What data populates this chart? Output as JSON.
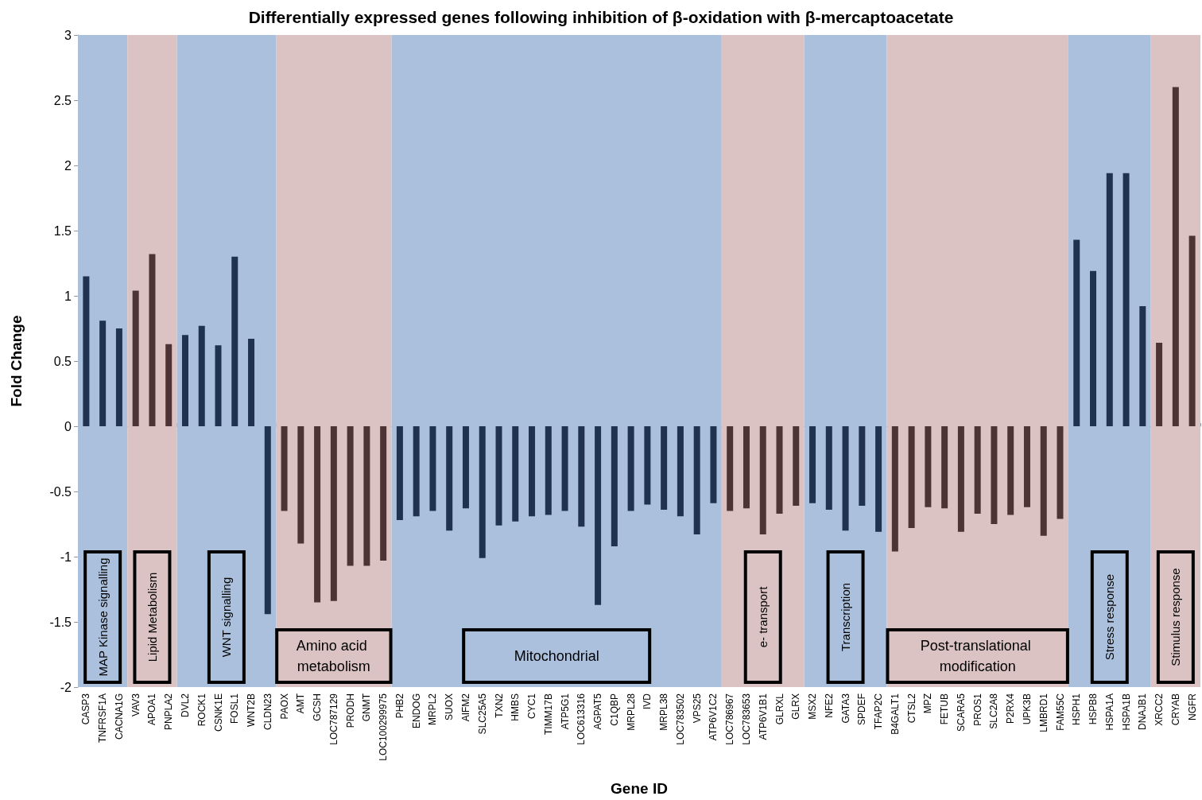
{
  "chart_data": {
    "type": "bar",
    "title": "Differentially expressed genes following inhibition of β-oxidation with β-mercaptoacetate",
    "xlabel": "Gene ID",
    "ylabel": "Fold Change",
    "categories": [
      "CASP3",
      "TNFRSF1A",
      "CACNA1G",
      "VAV3",
      "APOA1",
      "PNPLA2",
      "DVL2",
      "ROCK1",
      "CSNK1E",
      "FOSL1",
      "WNT2B",
      "CLDN23",
      "PAOX",
      "AMT",
      "GCSH",
      "LOC787129",
      "PRODH",
      "GNMT",
      "LOC100299975",
      "PHB2",
      "ENDOG",
      "MRPL2",
      "SUOX",
      "AIFM2",
      "SLC25A5",
      "TXN2",
      "HMBS",
      "CYC1",
      "TIMM17B",
      "ATP5G1",
      "LOC613316",
      "AGPAT5",
      "C1QBP",
      "MRPL28",
      "IVD",
      "MRPL38",
      "LOC783502",
      "VPS25",
      "ATP6V1C2",
      "LOC786967",
      "LOC783653",
      "ATP6V1B1",
      "GLRXL",
      "GLRX",
      "MSX2",
      "NFE2",
      "GATA3",
      "SPDEF",
      "TFAP2C",
      "B4GALT1",
      "CTSL2",
      "MPZ",
      "FETUB",
      "SCARA5",
      "PROS1",
      "SLC2A8",
      "P2RX4",
      "UPK3B",
      "LMBRD1",
      "FAM55C",
      "HSPH1",
      "HSPB8",
      "HSPA1A",
      "HSPA1B",
      "DNAJB1",
      "XRCC2",
      "CRYAB",
      "NGFR"
    ],
    "values": [
      1.15,
      0.81,
      0.75,
      1.04,
      1.32,
      0.63,
      0.7,
      0.77,
      0.62,
      1.3,
      0.67,
      -1.44,
      -0.65,
      -0.9,
      -1.35,
      -1.34,
      -1.07,
      -1.07,
      -1.03,
      -0.72,
      -0.69,
      -0.65,
      -0.8,
      -0.63,
      -1.01,
      -0.76,
      -0.73,
      -0.69,
      -0.68,
      -0.65,
      -0.77,
      -1.37,
      -0.92,
      -0.65,
      -0.6,
      -0.64,
      -0.69,
      -0.83,
      -0.59,
      -0.65,
      -0.63,
      -0.83,
      -0.67,
      -0.61,
      -0.59,
      -0.64,
      -0.8,
      -0.61,
      -0.81,
      -0.96,
      -0.78,
      -0.62,
      -0.63,
      -0.81,
      -0.67,
      -0.75,
      -0.68,
      -0.62,
      -0.84,
      -0.71,
      1.43,
      1.19,
      1.94,
      1.94,
      0.92,
      0.64,
      2.6,
      1.46
    ],
    "colors": [
      "#1f3250",
      "#1f3250",
      "#1f3250",
      "#4d3434",
      "#4d3434",
      "#4d3434",
      "#1f3250",
      "#1f3250",
      "#1f3250",
      "#1f3250",
      "#1f3250",
      "#1f3250",
      "#4d3434",
      "#4d3434",
      "#4d3434",
      "#4d3434",
      "#4d3434",
      "#4d3434",
      "#4d3434",
      "#1f3250",
      "#1f3250",
      "#1f3250",
      "#1f3250",
      "#1f3250",
      "#1f3250",
      "#1f3250",
      "#1f3250",
      "#1f3250",
      "#1f3250",
      "#1f3250",
      "#1f3250",
      "#1f3250",
      "#1f3250",
      "#1f3250",
      "#1f3250",
      "#1f3250",
      "#1f3250",
      "#1f3250",
      "#1f3250",
      "#4d3434",
      "#4d3434",
      "#4d3434",
      "#4d3434",
      "#4d3434",
      "#1f3250",
      "#1f3250",
      "#1f3250",
      "#1f3250",
      "#1f3250",
      "#4d3434",
      "#4d3434",
      "#4d3434",
      "#4d3434",
      "#4d3434",
      "#4d3434",
      "#4d3434",
      "#4d3434",
      "#4d3434",
      "#4d3434",
      "#4d3434",
      "#1f3250",
      "#1f3250",
      "#1f3250",
      "#1f3250",
      "#1f3250",
      "#4d3434",
      "#4d3434",
      "#4d3434"
    ],
    "ylim": [
      -2,
      3
    ],
    "yticks": [
      -2,
      -1.5,
      -1,
      -0.5,
      0,
      0.5,
      1,
      1.5,
      2,
      2.5,
      3
    ],
    "bands": [
      {
        "axis": "x",
        "from": "CASP3",
        "to": "CACNA1G",
        "label": "MAP Kinase signalling",
        "color": "#abc0dc"
      },
      {
        "axis": "x",
        "from": "VAV3",
        "to": "PNPLA2",
        "label": "Lipid Metabolism",
        "color": "#dcc3c3"
      },
      {
        "axis": "x",
        "from": "DVL2",
        "to": "CLDN23",
        "label": "WNT signalling",
        "color": "#abc0dc"
      },
      {
        "axis": "x",
        "from": "PAOX",
        "to": "LOC100299975",
        "label": "Amino acid metabolism",
        "color": "#dcc3c3"
      },
      {
        "axis": "x",
        "from": "PHB2",
        "to": "ATP6V1C2",
        "label": "Mitochondrial",
        "color": "#abc0dc"
      },
      {
        "axis": "x",
        "from": "LOC786967",
        "to": "GLRX",
        "label": "e- transport",
        "color": "#dcc3c3"
      },
      {
        "axis": "x",
        "from": "MSX2",
        "to": "TFAP2C",
        "label": "Transcription",
        "color": "#abc0dc"
      },
      {
        "axis": "x",
        "from": "B4GALT1",
        "to": "FAM55C",
        "label": "Post-translational modification",
        "color": "#dcc3c3"
      },
      {
        "axis": "x",
        "from": "HSPH1",
        "to": "DNAJB1",
        "label": "Stress response",
        "color": "#abc0dc"
      },
      {
        "axis": "x",
        "from": "XRCC2",
        "to": "NGFR",
        "label": "Stimulus response",
        "color": "#dcc3c3"
      }
    ]
  }
}
